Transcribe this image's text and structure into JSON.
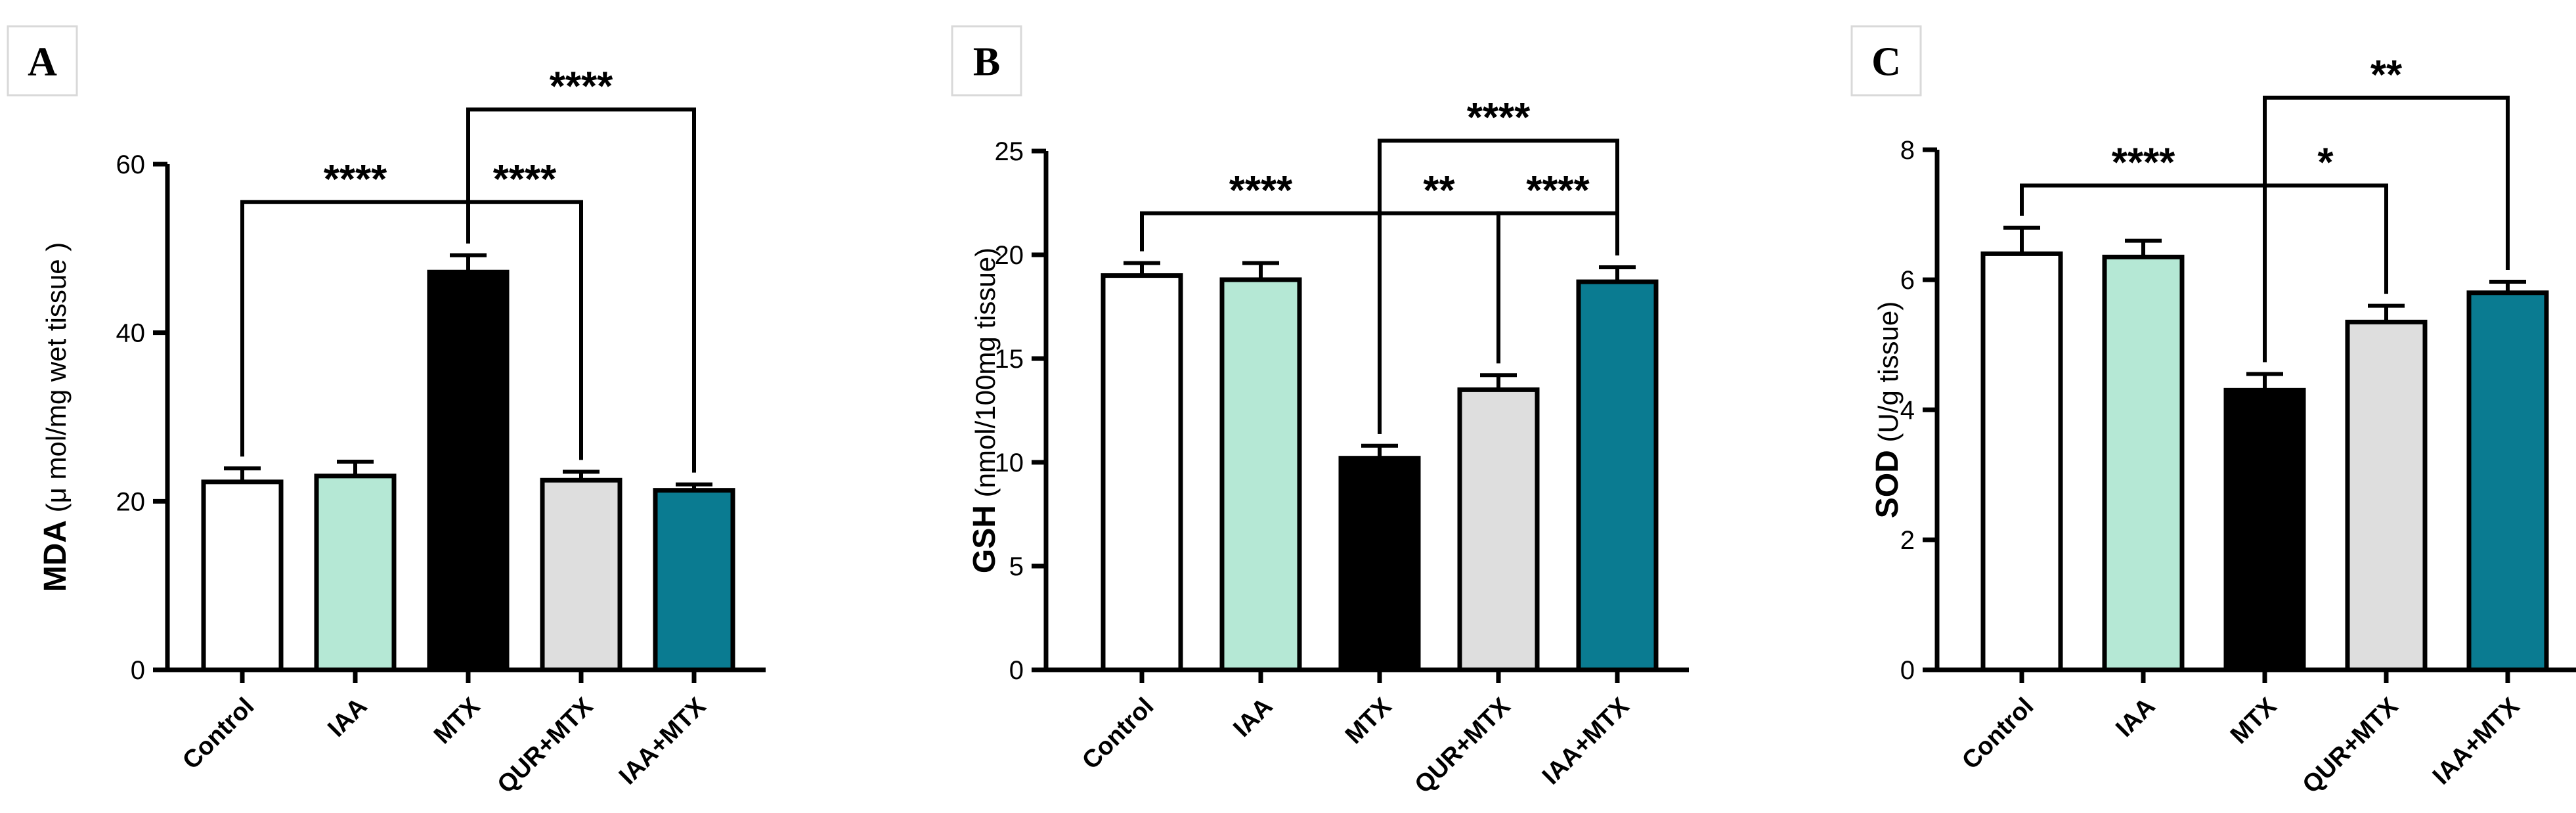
{
  "chart_data": [
    {
      "panel": "A",
      "type": "bar",
      "ylabel_bold": "MDA",
      "ylabel_rest": " (μ mol/mg wet tissue )",
      "ylim": [
        0,
        60
      ],
      "yticks": [
        0,
        20,
        40,
        60
      ],
      "categories": [
        "Control",
        "IAA",
        "MTX",
        "QUR+MTX",
        "IAA+MTX"
      ],
      "values": [
        22.3,
        23.0,
        47.2,
        22.5,
        21.3
      ],
      "errors": [
        1.6,
        1.7,
        2.0,
        1.0,
        0.7
      ],
      "colors": [
        "#ffffff",
        "#b5e8d5",
        "#000000",
        "#dedede",
        "#0a7b91"
      ],
      "significance": [
        {
          "from": 0,
          "to": 2,
          "label": "****",
          "level": 55.5
        },
        {
          "from": 2,
          "to": 3,
          "label": "****",
          "level": 55.5
        },
        {
          "from": 2,
          "to": 4,
          "label": "****",
          "level": 66.5
        }
      ]
    },
    {
      "panel": "B",
      "type": "bar",
      "ylabel_bold": "GSH",
      "ylabel_rest": " (nmol/100mg tissue)",
      "ylim": [
        0,
        25
      ],
      "yticks": [
        0,
        5,
        10,
        15,
        20,
        25
      ],
      "categories": [
        "Control",
        "IAA",
        "MTX",
        "QUR+MTX",
        "IAA+MTX"
      ],
      "values": [
        19.0,
        18.8,
        10.2,
        13.5,
        18.7
      ],
      "errors": [
        0.6,
        0.8,
        0.6,
        0.7,
        0.7
      ],
      "colors": [
        "#ffffff",
        "#b5e8d5",
        "#000000",
        "#dedede",
        "#0a7b91"
      ],
      "significance": [
        {
          "from": 0,
          "to": 2,
          "label": "****",
          "level": 22.0
        },
        {
          "from": 2,
          "to": 3,
          "label": "**",
          "level": 22.0
        },
        {
          "from": 3,
          "to": 4,
          "label": "****",
          "level": 22.0
        },
        {
          "from": 2,
          "to": 4,
          "label": "****",
          "level": 25.5
        }
      ]
    },
    {
      "panel": "C",
      "type": "bar",
      "ylabel_bold": "SOD",
      "ylabel_rest": " (U/g tissue)",
      "ylim": [
        0,
        8
      ],
      "yticks": [
        0,
        2,
        4,
        6,
        8
      ],
      "categories": [
        "Control",
        "IAA",
        "MTX",
        "QUR+MTX",
        "IAA+MTX"
      ],
      "values": [
        6.4,
        6.35,
        4.3,
        5.35,
        5.8
      ],
      "errors": [
        0.4,
        0.25,
        0.25,
        0.25,
        0.17
      ],
      "colors": [
        "#ffffff",
        "#b5e8d5",
        "#000000",
        "#dedede",
        "#0a7b91"
      ],
      "significance": [
        {
          "from": 0,
          "to": 2,
          "label": "****",
          "level": 7.45
        },
        {
          "from": 2,
          "to": 3,
          "label": "*",
          "level": 7.45
        },
        {
          "from": 2,
          "to": 4,
          "label": "**",
          "level": 8.8
        }
      ]
    }
  ]
}
